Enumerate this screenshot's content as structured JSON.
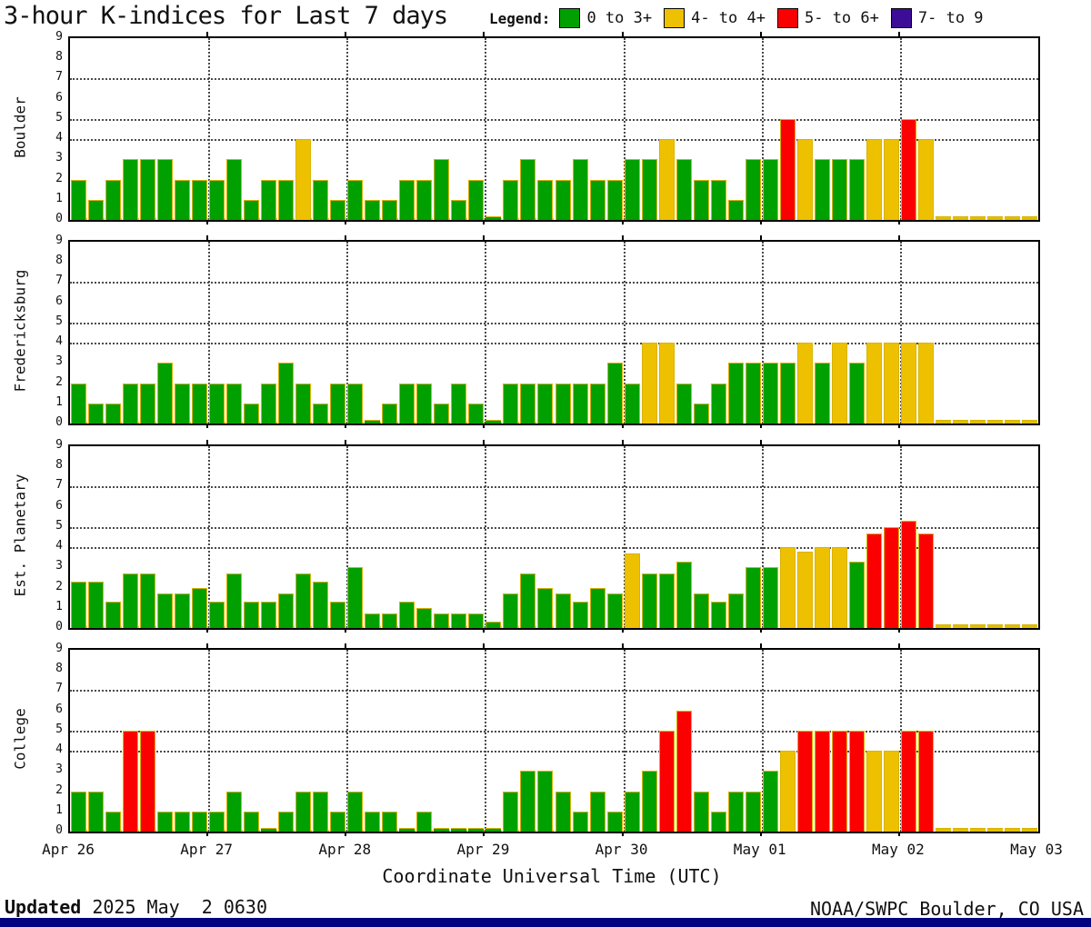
{
  "header": {
    "title": "3-hour K-indices for Last 7 days",
    "legend_label": "Legend:"
  },
  "chart_data": {
    "type": "bar",
    "title": "3-hour K-indices for Last 7 days",
    "xlabel": "Coordinate Universal Time (UTC)",
    "ylim": [
      0,
      9
    ],
    "y_ticks": [
      0,
      1,
      2,
      3,
      4,
      5,
      6,
      7,
      8,
      9
    ],
    "y_gridlines": [
      4,
      5,
      7
    ],
    "grid": "dotted",
    "bars_per_day": 8,
    "x_ticks": [
      "Apr 26",
      "Apr 27",
      "Apr 28",
      "Apr 29",
      "Apr 30",
      "May 01",
      "May 02",
      "May 03"
    ],
    "legend_position": "top",
    "legend": [
      {
        "label": "0 to 3+",
        "color": "#00a000"
      },
      {
        "label": "4- to 4+",
        "color": "#eec100"
      },
      {
        "label": "5- to 6+",
        "color": "#fb0000"
      },
      {
        "label": "7- to 9",
        "color": "#3c0d96"
      }
    ],
    "color_rule": {
      "green_below": 3.6,
      "yellow_below": 4.6,
      "red_below": 6.6,
      "purple_to": 9
    },
    "panels": [
      {
        "station": "Boulder",
        "values": [
          2,
          1,
          2,
          3,
          3,
          3,
          2,
          2,
          2,
          3,
          1,
          2,
          2,
          4,
          2,
          1,
          2,
          1,
          1,
          2,
          2,
          3,
          1,
          2,
          0,
          2,
          3,
          2,
          2,
          3,
          2,
          2,
          3,
          3,
          4,
          3,
          2,
          2,
          1,
          3,
          3,
          5,
          4,
          3,
          3,
          3,
          4,
          4,
          5,
          4,
          null,
          null,
          null,
          null,
          null,
          null
        ]
      },
      {
        "station": "Fredericksburg",
        "values": [
          2,
          1,
          1,
          2,
          2,
          3,
          2,
          2,
          2,
          2,
          1,
          2,
          3,
          2,
          1,
          2,
          2,
          0,
          1,
          2,
          2,
          1,
          2,
          1,
          0,
          2,
          2,
          2,
          2,
          2,
          2,
          3,
          2,
          4,
          4,
          2,
          1,
          2,
          3,
          3,
          3,
          3,
          4,
          3,
          4,
          3,
          4,
          4,
          4,
          4,
          null,
          null,
          null,
          null,
          null,
          null
        ]
      },
      {
        "station": "Est. Planetary",
        "values": [
          2.3,
          2.3,
          1.3,
          2.7,
          2.7,
          1.7,
          1.7,
          2,
          1.3,
          2.7,
          1.3,
          1.3,
          1.7,
          2.7,
          2.3,
          1.3,
          3,
          0.7,
          0.7,
          1.3,
          1,
          0.7,
          0.7,
          0.7,
          0.3,
          1.7,
          2.7,
          2,
          1.7,
          1.3,
          2,
          1.7,
          3.7,
          2.7,
          2.7,
          3.3,
          1.7,
          1.3,
          1.7,
          3,
          3,
          4,
          3.8,
          4,
          4,
          3.3,
          4.7,
          5,
          5.3,
          4.7,
          null,
          null,
          null,
          null,
          null,
          null
        ]
      },
      {
        "station": "College",
        "values": [
          2,
          2,
          1,
          5,
          5,
          1,
          1,
          1,
          1,
          2,
          1,
          0,
          1,
          2,
          2,
          1,
          2,
          1,
          1,
          0,
          1,
          0,
          0,
          0,
          0,
          2,
          3,
          3,
          2,
          1,
          2,
          1,
          2,
          3,
          5,
          6,
          2,
          1,
          2,
          2,
          3,
          4,
          5,
          5,
          5,
          5,
          4,
          4,
          5,
          5,
          null,
          null,
          null,
          null,
          null,
          null
        ]
      }
    ]
  },
  "footer": {
    "updated_label": "Updated",
    "updated_value": "2025 May  2 0630",
    "credit": "NOAA/SWPC Boulder, CO USA"
  },
  "colors": {
    "green": "#00a000",
    "yellow": "#eec100",
    "red": "#fb0000",
    "purple": "#3c0d96",
    "bar_outline": "#d9b200",
    "null_stub": "#dfc000",
    "zero_stub": "#00a000",
    "gridline": "#4a4a4a",
    "frame": "#000000",
    "bottom_strip": "#000080"
  }
}
